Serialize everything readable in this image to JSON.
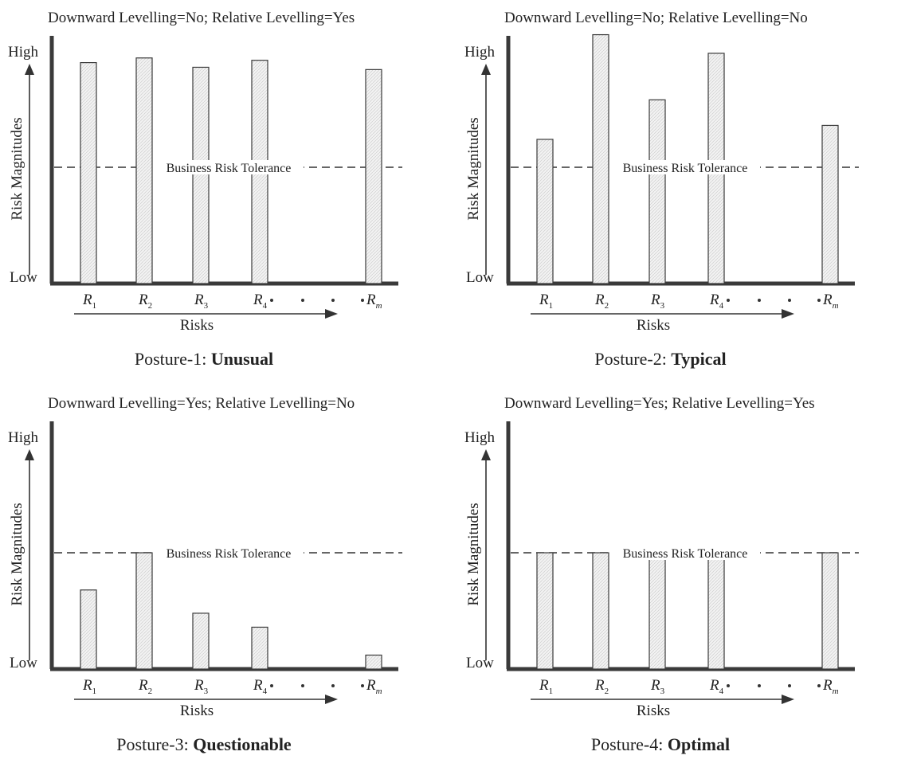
{
  "panels": [
    {
      "header": "Downward Levelling=No; Relative Levelling=Yes",
      "caption_prefix": "Posture-1: ",
      "caption_bold": "Unusual",
      "y_high": "High",
      "y_low": "Low",
      "y_label": "Risk Magnitudes",
      "x_label": "Risks",
      "tolerance_label": "Business Risk Tolerance",
      "tolerance_level": 0.5,
      "bars": [
        {
          "name": "R",
          "sub": "1",
          "value": 0.95
        },
        {
          "name": "R",
          "sub": "2",
          "value": 0.97
        },
        {
          "name": "R",
          "sub": "3",
          "value": 0.93
        },
        {
          "name": "R",
          "sub": "4",
          "value": 0.96
        },
        {
          "name": "R",
          "sub": "m",
          "value": 0.92
        }
      ]
    },
    {
      "header": "Downward Levelling=No; Relative Levelling=No",
      "caption_prefix": "Posture-2: ",
      "caption_bold": "Typical",
      "y_high": "High",
      "y_low": "Low",
      "y_label": "Risk Magnitudes",
      "x_label": "Risks",
      "tolerance_label": "Business Risk Tolerance",
      "tolerance_level": 0.5,
      "bars": [
        {
          "name": "R",
          "sub": "1",
          "value": 0.62
        },
        {
          "name": "R",
          "sub": "2",
          "value": 1.07
        },
        {
          "name": "R",
          "sub": "3",
          "value": 0.79
        },
        {
          "name": "R",
          "sub": "4",
          "value": 0.99
        },
        {
          "name": "R",
          "sub": "m",
          "value": 0.68
        }
      ]
    },
    {
      "header": "Downward Levelling=Yes; Relative Levelling=No",
      "caption_prefix": "Posture-3: ",
      "caption_bold": "Questionable",
      "y_high": "High",
      "y_low": "Low",
      "y_label": "Risk Magnitudes",
      "x_label": "Risks",
      "tolerance_label": "Business Risk Tolerance",
      "tolerance_level": 0.5,
      "bars": [
        {
          "name": "R",
          "sub": "1",
          "value": 0.34
        },
        {
          "name": "R",
          "sub": "2",
          "value": 0.5
        },
        {
          "name": "R",
          "sub": "3",
          "value": 0.24
        },
        {
          "name": "R",
          "sub": "4",
          "value": 0.18
        },
        {
          "name": "R",
          "sub": "m",
          "value": 0.06
        }
      ]
    },
    {
      "header": "Downward Levelling=Yes; Relative Levelling=Yes",
      "caption_prefix": "Posture-4: ",
      "caption_bold": "Optimal",
      "y_high": "High",
      "y_low": "Low",
      "y_label": "Risk Magnitudes",
      "x_label": "Risks",
      "tolerance_label": "Business Risk Tolerance",
      "tolerance_level": 0.5,
      "bars": [
        {
          "name": "R",
          "sub": "1",
          "value": 0.5
        },
        {
          "name": "R",
          "sub": "2",
          "value": 0.5
        },
        {
          "name": "R",
          "sub": "3",
          "value": 0.5
        },
        {
          "name": "R",
          "sub": "4",
          "value": 0.5
        },
        {
          "name": "R",
          "sub": "m",
          "value": 0.5
        }
      ]
    }
  ],
  "colors": {
    "axis": "#3a3a3a",
    "bar_fill": "#eeeeee",
    "text": "#222222"
  }
}
